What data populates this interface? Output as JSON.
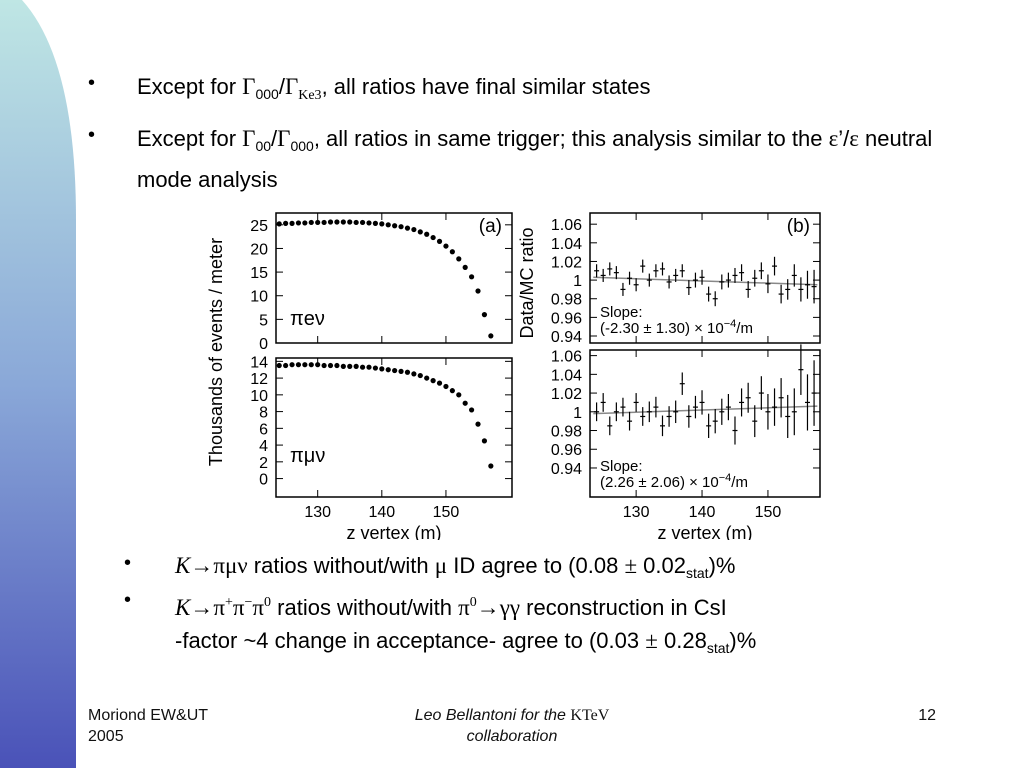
{
  "bullets": [
    {
      "segments": [
        "Except for ",
        "Γ",
        "000",
        "/",
        "Γ",
        "Ke3",
        ", all ratios have final similar states"
      ]
    },
    {
      "segments": [
        "Except for ",
        "Γ",
        "00",
        "/",
        "Γ",
        "000",
        ", all ratios in same trigger; this analysis similar to the ",
        "ε",
        "’/",
        "ε",
        " neutral mode analysis"
      ]
    },
    {
      "segments": [
        "K",
        "→",
        "πμν",
        " ratios without/with ",
        "μ",
        " ID agree to (0.08 ",
        "±",
        " 0.02",
        "stat",
        ")%"
      ]
    },
    {
      "segments": [
        "K",
        "→",
        "π",
        "+",
        "π",
        "−",
        "π",
        "0",
        " ratios without/with ",
        "π",
        "0",
        "→",
        "γγ",
        " reconstruction in CsI",
        "-factor ~4 change in acceptance-  agree  to (0.03 ",
        "±",
        " 0.28",
        "stat",
        ")%"
      ]
    }
  ],
  "footer": {
    "left": [
      "Moriond EW&UT",
      "2005"
    ],
    "center": [
      "Leo Bellantoni for the ",
      "KTeV",
      "collaboration"
    ],
    "page": "12"
  },
  "chart_data": [
    {
      "type": "scatter",
      "ylabel": "Thousands of events / meter",
      "annotation": "(a)",
      "label": "πeν",
      "x": [
        124,
        125,
        126,
        127,
        128,
        129,
        130,
        131,
        132,
        133,
        134,
        135,
        136,
        137,
        138,
        139,
        140,
        141,
        142,
        143,
        144,
        145,
        146,
        147,
        148,
        149,
        150,
        151,
        152,
        153,
        154,
        155,
        156,
        157
      ],
      "values": [
        25.2,
        25.3,
        25.3,
        25.4,
        25.4,
        25.5,
        25.5,
        25.5,
        25.6,
        25.6,
        25.6,
        25.6,
        25.5,
        25.5,
        25.4,
        25.3,
        25.2,
        25.0,
        24.8,
        24.6,
        24.3,
        24.0,
        23.5,
        23.0,
        22.3,
        21.5,
        20.5,
        19.3,
        17.8,
        16.0,
        14.0,
        11.0,
        6.0,
        1.5
      ],
      "xlim": [
        123.5,
        160.3
      ],
      "ylim": [
        0,
        27.5
      ],
      "xticks": [
        130,
        140,
        150
      ],
      "yticks": [
        0,
        5,
        10,
        15,
        20,
        25
      ],
      "color": "#000000"
    },
    {
      "type": "scatter",
      "label": "πμν",
      "xlabel": "z vertex (m)",
      "x": [
        124,
        125,
        126,
        127,
        128,
        129,
        130,
        131,
        132,
        133,
        134,
        135,
        136,
        137,
        138,
        139,
        140,
        141,
        142,
        143,
        144,
        145,
        146,
        147,
        148,
        149,
        150,
        151,
        152,
        153,
        154,
        155,
        156,
        157
      ],
      "values": [
        13.5,
        13.5,
        13.6,
        13.6,
        13.6,
        13.6,
        13.6,
        13.5,
        13.5,
        13.5,
        13.4,
        13.4,
        13.4,
        13.3,
        13.3,
        13.2,
        13.1,
        13.0,
        12.9,
        12.8,
        12.7,
        12.5,
        12.3,
        12.0,
        11.7,
        11.4,
        11.0,
        10.5,
        10.0,
        9.0,
        8.2,
        6.5,
        4.5,
        1.5
      ],
      "xlim": [
        123.5,
        160.3
      ],
      "ylim": [
        -2.2,
        14.4
      ],
      "xticks": [
        130,
        140,
        150
      ],
      "yticks": [
        0,
        2,
        4,
        6,
        8,
        10,
        12,
        14
      ],
      "color": "#000000"
    },
    {
      "type": "errorbar",
      "ylabel": "Data/MC ratio",
      "annotation": "(b)",
      "slope": [
        "Slope:",
        "(-2.30 ± 1.30) × 10",
        "−4",
        "/m"
      ],
      "x": [
        124,
        125,
        126,
        127,
        128,
        129,
        130,
        131,
        132,
        133,
        134,
        135,
        136,
        137,
        138,
        139,
        140,
        141,
        142,
        143,
        144,
        145,
        146,
        147,
        148,
        149,
        150,
        151,
        152,
        153,
        154,
        155,
        156,
        157
      ],
      "values": [
        1.01,
        1.005,
        1.012,
        1.008,
        0.99,
        1.002,
        0.995,
        1.015,
        1.0,
        1.01,
        1.012,
        0.998,
        1.005,
        1.01,
        0.992,
        1.0,
        1.003,
        0.985,
        0.98,
        0.998,
        1.0,
        1.005,
        1.008,
        0.99,
        1.002,
        1.01,
        0.996,
        1.015,
        0.985,
        0.99,
        1.005,
        0.99,
        0.995,
        0.993
      ],
      "errors": [
        0.007,
        0.007,
        0.007,
        0.007,
        0.007,
        0.007,
        0.007,
        0.007,
        0.007,
        0.007,
        0.007,
        0.007,
        0.007,
        0.007,
        0.008,
        0.008,
        0.008,
        0.008,
        0.008,
        0.008,
        0.008,
        0.008,
        0.009,
        0.009,
        0.009,
        0.009,
        0.01,
        0.01,
        0.01,
        0.011,
        0.012,
        0.013,
        0.015,
        0.018
      ],
      "fit_x": [
        123.5,
        157.5
      ],
      "fit_values": [
        1.003,
        0.995
      ],
      "xlim": [
        123,
        157.9
      ],
      "ylim": [
        0.9325,
        1.072
      ],
      "xticks": [
        130,
        140,
        150
      ],
      "yticks": [
        0.94,
        0.96,
        0.98,
        1,
        1.02,
        1.04,
        1.06
      ],
      "color": "#000000",
      "fit_color": "#888888"
    },
    {
      "type": "errorbar",
      "xlabel": "z vertex (m)",
      "slope": [
        "Slope:",
        "(2.26 ± 2.06) × 10",
        "−4",
        "/m"
      ],
      "x": [
        124,
        125,
        126,
        127,
        128,
        129,
        130,
        131,
        132,
        133,
        134,
        135,
        136,
        137,
        138,
        139,
        140,
        141,
        142,
        143,
        144,
        145,
        146,
        147,
        148,
        149,
        150,
        151,
        152,
        153,
        154,
        155,
        156,
        157
      ],
      "values": [
        1.0,
        1.01,
        0.985,
        1.0,
        1.005,
        0.99,
        1.01,
        0.995,
        1.0,
        1.005,
        0.985,
        0.995,
        1.0,
        1.03,
        0.995,
        1.005,
        1.01,
        0.985,
        0.99,
        1.0,
        1.005,
        0.98,
        1.01,
        1.015,
        0.99,
        1.02,
        1.0,
        1.005,
        1.015,
        0.995,
        1.0,
        1.045,
        1.01,
        1.02
      ],
      "errors": [
        0.01,
        0.01,
        0.01,
        0.01,
        0.01,
        0.01,
        0.01,
        0.01,
        0.011,
        0.011,
        0.011,
        0.011,
        0.012,
        0.012,
        0.012,
        0.012,
        0.013,
        0.013,
        0.013,
        0.014,
        0.014,
        0.015,
        0.015,
        0.016,
        0.017,
        0.018,
        0.019,
        0.02,
        0.021,
        0.023,
        0.025,
        0.027,
        0.03,
        0.035
      ],
      "fit_x": [
        123.5,
        157.5
      ],
      "fit_values": [
        0.998,
        1.006
      ],
      "xlim": [
        123,
        157.9
      ],
      "ylim": [
        0.909,
        1.066
      ],
      "xticks": [
        130,
        140,
        150
      ],
      "yticks": [
        0.94,
        0.96,
        0.98,
        1,
        1.02,
        1.04,
        1.06
      ],
      "color": "#000000",
      "fit_color": "#888888"
    }
  ]
}
